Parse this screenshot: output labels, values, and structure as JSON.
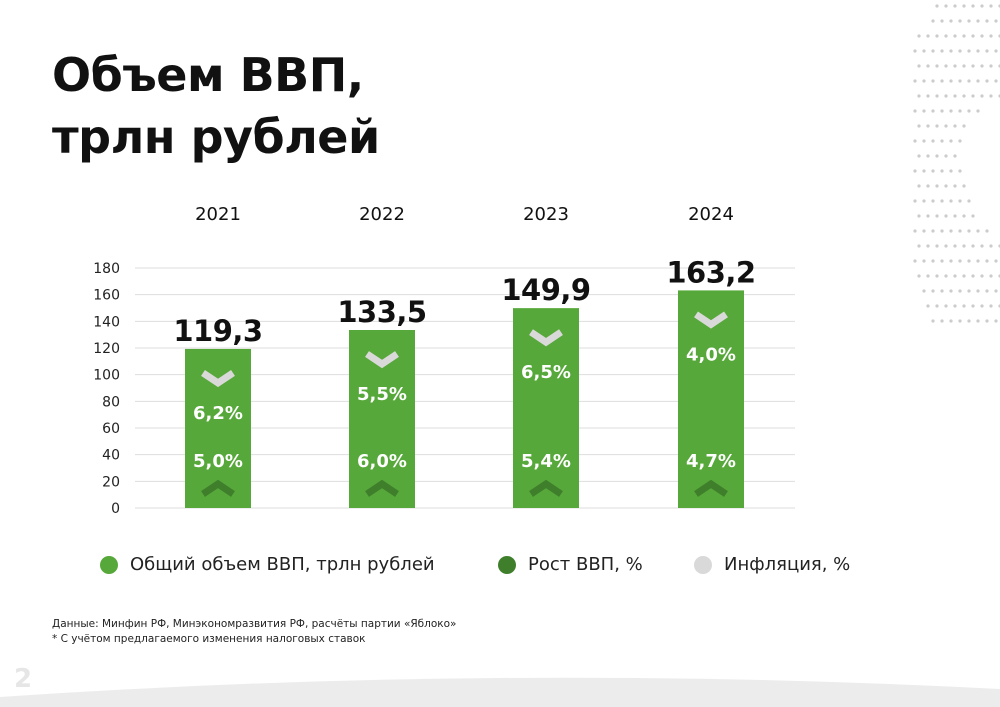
{
  "title": {
    "line1": "Объем ВВП,",
    "line2": "трлн рублей"
  },
  "colors": {
    "bar": "#57a83a",
    "growth": "#3f7f2c",
    "inflation": "#d9d9d9",
    "grid": "#dddddd",
    "deco": "#cccccc"
  },
  "chart_data": {
    "type": "bar",
    "categories": [
      "2021",
      "2022",
      "2023",
      "2024"
    ],
    "values": [
      119.3,
      133.5,
      149.9,
      163.2
    ],
    "value_labels": [
      "119,3",
      "133,5",
      "149,9",
      "163,2"
    ],
    "inflation_labels": [
      "6,2%",
      "5,5%",
      "6,5%",
      "4,0%"
    ],
    "growth_labels": [
      "5,0%",
      "6,0%",
      "5,4%",
      "4,7%"
    ],
    "y_ticks": [
      0,
      20,
      40,
      60,
      80,
      100,
      120,
      140,
      160,
      180
    ],
    "ylim": [
      0,
      180
    ],
    "grid": true,
    "legend_position": "bottom",
    "legend": [
      {
        "label": "Общий объем ВВП, трлн рублей",
        "color": "#57a83a"
      },
      {
        "label": "Рост ВВП, %",
        "color": "#3f7f2c"
      },
      {
        "label": "Инфляция, %",
        "color": "#d9d9d9"
      }
    ]
  },
  "footnotes": {
    "source": "Данные: Минфин РФ, Минэкономразвития РФ, расчёты партии «Яблоко»",
    "note": "* С учётом предлагаемого изменения налоговых ставок"
  },
  "page_number": "2"
}
